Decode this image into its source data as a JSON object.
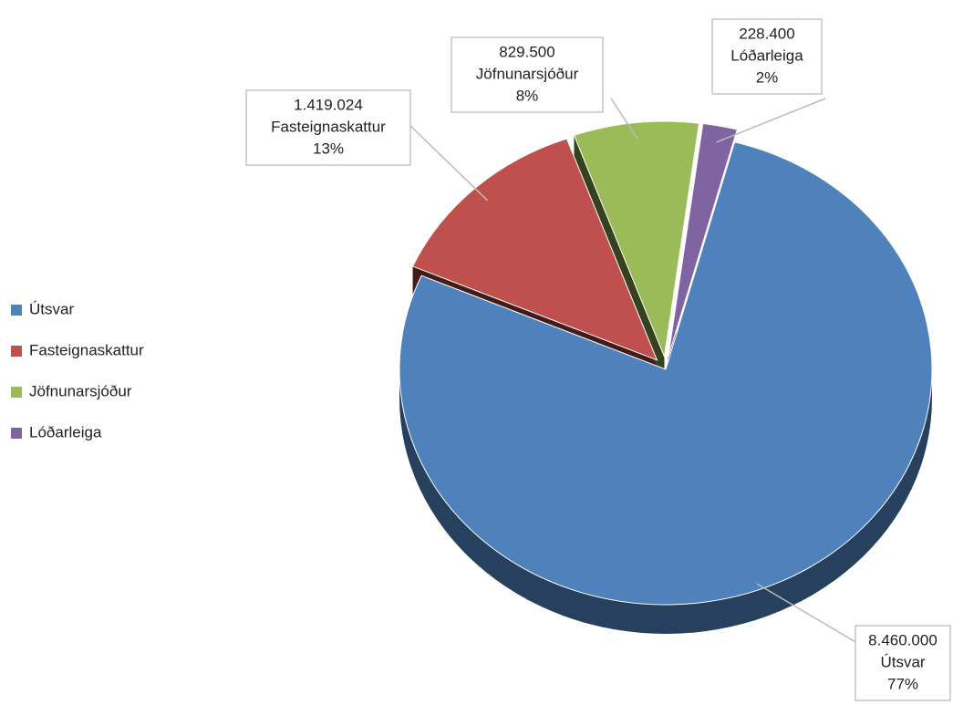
{
  "chart_data": {
    "type": "pie",
    "categories": [
      "Útsvar",
      "Fasteignaskattur",
      "Jöfnunarsjóður",
      "Lóðarleiga"
    ],
    "values": [
      8460000,
      1419024,
      829500,
      228400
    ],
    "value_labels": [
      "8.460.000",
      "1.419.024",
      "829.500",
      "228.400"
    ],
    "percentages": [
      77,
      13,
      8,
      2
    ],
    "percentage_labels": [
      "77%",
      "13%",
      "8%",
      "2%"
    ],
    "colors": [
      "#4f81bd",
      "#c0504d",
      "#9bbb59",
      "#8064a2"
    ],
    "legend": "left"
  }
}
